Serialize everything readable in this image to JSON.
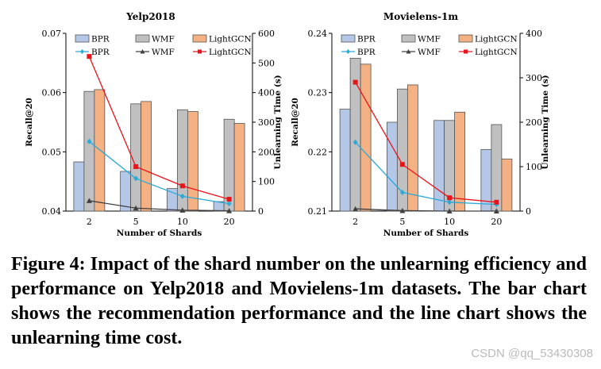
{
  "chart_data": [
    {
      "type": "bar+line",
      "title": "Yelp2018",
      "xlabel": "Number of Shards",
      "ylabel_left": "Recall@20",
      "ylabel_right": "Unlearning Time (s)",
      "categories": [
        "2",
        "5",
        "10",
        "20"
      ],
      "ylim_left": [
        0.04,
        0.07
      ],
      "yticks_left": [
        "0.04",
        "0.05",
        "0.06",
        "0.07"
      ],
      "ylim_right": [
        0,
        600
      ],
      "yticks_right": [
        "0",
        "100",
        "200",
        "300",
        "400",
        "500",
        "600"
      ],
      "bar_series": [
        {
          "name": "BPR",
          "color": "#b4c7e7",
          "values": [
            0.0483,
            0.0467,
            0.0438,
            0.0416
          ]
        },
        {
          "name": "WMF",
          "color": "#c0c0c0",
          "values": [
            0.0602,
            0.0581,
            0.0571,
            0.0555
          ]
        },
        {
          "name": "LightGCN",
          "color": "#f4b183",
          "values": [
            0.0605,
            0.0585,
            0.0568,
            0.0548
          ]
        }
      ],
      "line_series": [
        {
          "name": "BPR",
          "color": "#2ba9d8",
          "marker": "diamond",
          "values": [
            235,
            110,
            50,
            25
          ]
        },
        {
          "name": "WMF",
          "color": "#404040",
          "marker": "triangle",
          "values": [
            35,
            10,
            3,
            1
          ]
        },
        {
          "name": "LightGCN",
          "color": "#e8141b",
          "marker": "square",
          "values": [
            522,
            150,
            85,
            40
          ]
        }
      ]
    },
    {
      "type": "bar+line",
      "title": "Movielens-1m",
      "xlabel": "Number of Shards",
      "ylabel_left": "Recall@20",
      "ylabel_right": "Unlearning Time (s)",
      "categories": [
        "2",
        "5",
        "10",
        "20"
      ],
      "ylim_left": [
        0.21,
        0.24
      ],
      "yticks_left": [
        "0.21",
        "0.22",
        "0.23",
        "0.24"
      ],
      "ylim_right": [
        0,
        400
      ],
      "yticks_right": [
        "0",
        "100",
        "200",
        "300",
        "400"
      ],
      "bar_series": [
        {
          "name": "BPR",
          "color": "#b4c7e7",
          "values": [
            0.2272,
            0.225,
            0.2253,
            0.2204
          ]
        },
        {
          "name": "WMF",
          "color": "#c0c0c0",
          "values": [
            0.2358,
            0.2306,
            0.2253,
            0.2246
          ]
        },
        {
          "name": "LightGCN",
          "color": "#f4b183",
          "values": [
            0.2348,
            0.2313,
            0.2267,
            0.2188
          ]
        }
      ],
      "line_series": [
        {
          "name": "BPR",
          "color": "#2ba9d8",
          "marker": "diamond",
          "values": [
            155,
            42,
            20,
            15
          ]
        },
        {
          "name": "WMF",
          "color": "#404040",
          "marker": "triangle",
          "values": [
            5,
            1,
            0,
            0
          ]
        },
        {
          "name": "LightGCN",
          "color": "#e8141b",
          "marker": "square",
          "values": [
            290,
            105,
            30,
            20
          ]
        }
      ]
    }
  ],
  "caption": "Figure 4: Impact of the shard number on the unlearning efficiency and performance on Yelp2018 and Movielens-1m datasets. The bar chart shows the recommendation performance and the line chart shows the unlearning time cost.",
  "watermark": "CSDN @qq_53430308"
}
